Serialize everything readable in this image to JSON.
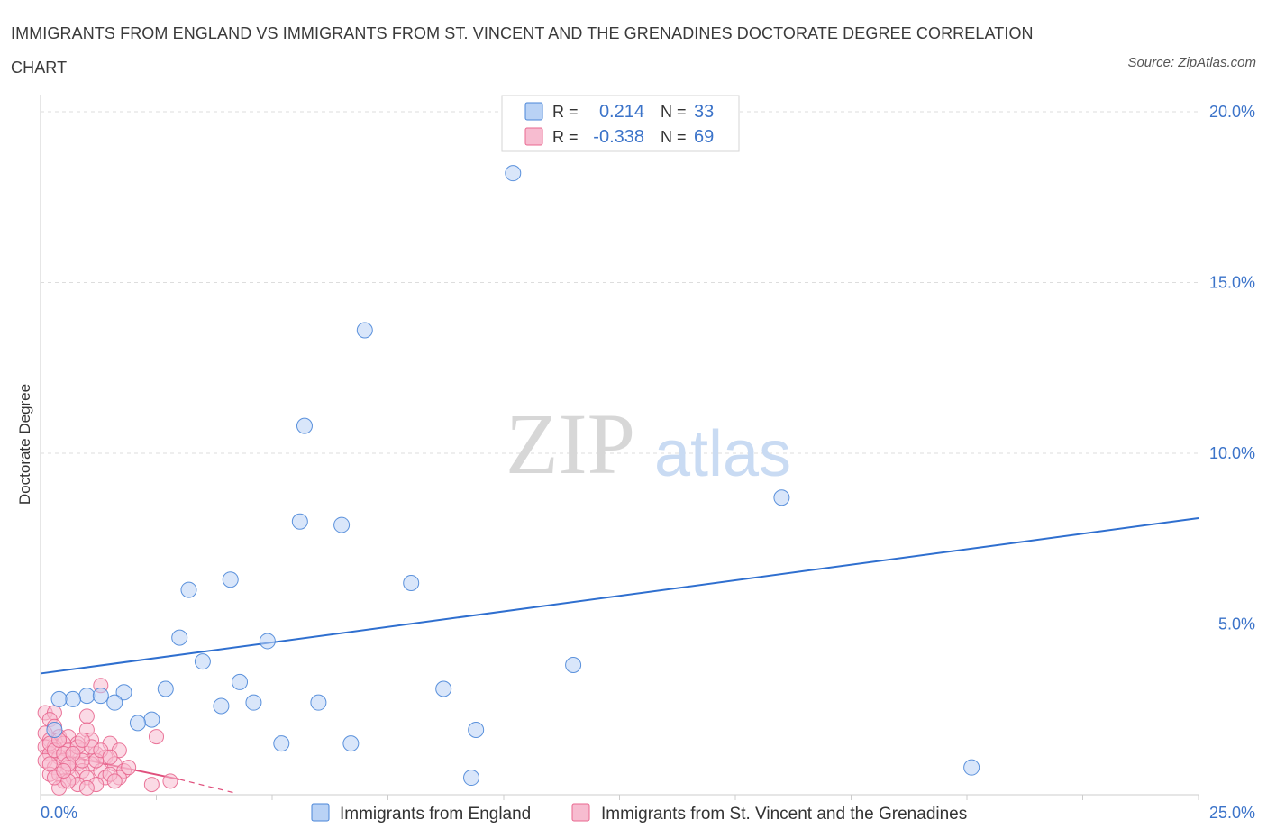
{
  "title": "IMMIGRANTS FROM ENGLAND VS IMMIGRANTS FROM ST. VINCENT AND THE GRENADINES DOCTORATE DEGREE CORRELATION CHART",
  "source": "Source: ZipAtlas.com",
  "watermark": {
    "zip": "ZIP",
    "atlas": "atlas"
  },
  "colors": {
    "blue": "#4a86d8",
    "blue_fill": "#b9d2f5",
    "blue_line": "#2f6fcf",
    "pink": "#e8678f",
    "pink_fill": "#f7bcd0",
    "pink_line": "#e0507d",
    "axis_text": "#3b73c9",
    "grid": "#dddddd"
  },
  "legend_box": {
    "rows": [
      {
        "r_label": "R =",
        "r_value": "0.214",
        "n_label": "N =",
        "n_value": "33",
        "color": "blue"
      },
      {
        "r_label": "R =",
        "r_value": "-0.338",
        "n_label": "N =",
        "n_value": "69",
        "color": "pink"
      }
    ]
  },
  "chart_data": {
    "type": "scatter",
    "ylabel": "Doctorate Degree",
    "xlabel": "",
    "xlim": [
      0,
      25
    ],
    "ylim": [
      0,
      20.5
    ],
    "x_tick_labels": [
      {
        "value": 0,
        "label": "0.0%"
      },
      {
        "value": 25,
        "label": "25.0%"
      }
    ],
    "y_tick_labels": [
      {
        "value": 5,
        "label": "5.0%"
      },
      {
        "value": 10,
        "label": "10.0%"
      },
      {
        "value": 15,
        "label": "15.0%"
      },
      {
        "value": 20,
        "label": "20.0%"
      }
    ],
    "grid": true,
    "legend_position": "bottom",
    "series": [
      {
        "name": "Immigrants from England",
        "color": "blue",
        "points": [
          [
            10.2,
            18.2
          ],
          [
            7.0,
            13.6
          ],
          [
            5.7,
            10.8
          ],
          [
            16.0,
            8.7
          ],
          [
            5.6,
            8.0
          ],
          [
            6.5,
            7.9
          ],
          [
            8.0,
            6.2
          ],
          [
            4.1,
            6.3
          ],
          [
            3.2,
            6.0
          ],
          [
            3.0,
            4.6
          ],
          [
            4.9,
            4.5
          ],
          [
            3.5,
            3.9
          ],
          [
            11.5,
            3.8
          ],
          [
            4.3,
            3.3
          ],
          [
            8.7,
            3.1
          ],
          [
            2.7,
            3.1
          ],
          [
            1.8,
            3.0
          ],
          [
            1.0,
            2.9
          ],
          [
            1.3,
            2.9
          ],
          [
            0.7,
            2.8
          ],
          [
            0.4,
            2.8
          ],
          [
            1.6,
            2.7
          ],
          [
            4.6,
            2.7
          ],
          [
            6.0,
            2.7
          ],
          [
            3.9,
            2.6
          ],
          [
            2.4,
            2.2
          ],
          [
            2.1,
            2.1
          ],
          [
            9.4,
            1.9
          ],
          [
            0.3,
            1.9
          ],
          [
            5.2,
            1.5
          ],
          [
            6.7,
            1.5
          ],
          [
            9.3,
            0.5
          ],
          [
            20.1,
            0.8
          ]
        ]
      },
      {
        "name": "Immigrants from St. Vincent and the Grenadines",
        "color": "pink",
        "points": [
          [
            1.3,
            3.2
          ],
          [
            0.1,
            2.4
          ],
          [
            0.3,
            2.4
          ],
          [
            0.2,
            2.2
          ],
          [
            1.0,
            2.3
          ],
          [
            0.3,
            2.0
          ],
          [
            1.0,
            1.9
          ],
          [
            0.1,
            1.8
          ],
          [
            0.4,
            1.7
          ],
          [
            0.6,
            1.7
          ],
          [
            1.1,
            1.6
          ],
          [
            2.5,
            1.7
          ],
          [
            0.2,
            1.6
          ],
          [
            0.5,
            1.5
          ],
          [
            0.8,
            1.5
          ],
          [
            1.5,
            1.5
          ],
          [
            0.1,
            1.4
          ],
          [
            0.3,
            1.4
          ],
          [
            0.6,
            1.3
          ],
          [
            0.9,
            1.3
          ],
          [
            1.2,
            1.2
          ],
          [
            1.7,
            1.3
          ],
          [
            0.2,
            1.2
          ],
          [
            0.4,
            1.1
          ],
          [
            0.7,
            1.1
          ],
          [
            1.4,
            1.1
          ],
          [
            0.1,
            1.0
          ],
          [
            0.5,
            1.0
          ],
          [
            0.8,
            0.9
          ],
          [
            1.1,
            0.9
          ],
          [
            1.6,
            0.9
          ],
          [
            0.3,
            0.8
          ],
          [
            0.6,
            0.8
          ],
          [
            0.9,
            0.7
          ],
          [
            1.3,
            0.7
          ],
          [
            1.8,
            0.7
          ],
          [
            0.2,
            0.6
          ],
          [
            0.4,
            0.6
          ],
          [
            0.7,
            0.5
          ],
          [
            1.0,
            0.5
          ],
          [
            1.4,
            0.5
          ],
          [
            1.7,
            0.5
          ],
          [
            0.5,
            0.4
          ],
          [
            0.8,
            0.3
          ],
          [
            1.2,
            0.3
          ],
          [
            2.4,
            0.3
          ],
          [
            2.8,
            0.4
          ],
          [
            0.4,
            0.2
          ],
          [
            1.0,
            0.2
          ],
          [
            1.5,
            0.6
          ],
          [
            1.9,
            0.8
          ],
          [
            0.2,
            1.5
          ],
          [
            0.3,
            1.3
          ],
          [
            0.5,
            1.2
          ],
          [
            0.6,
            0.9
          ],
          [
            0.4,
            1.6
          ],
          [
            0.8,
            1.4
          ],
          [
            1.1,
            1.4
          ],
          [
            0.9,
            1.0
          ],
          [
            1.2,
            1.0
          ],
          [
            0.3,
            0.5
          ],
          [
            0.6,
            0.4
          ],
          [
            1.6,
            0.4
          ],
          [
            0.7,
            1.2
          ],
          [
            0.2,
            0.9
          ],
          [
            0.5,
            0.7
          ],
          [
            1.3,
            1.3
          ],
          [
            0.9,
            1.6
          ],
          [
            1.5,
            1.1
          ]
        ]
      }
    ],
    "trend_lines": [
      {
        "series": "Immigrants from England",
        "color": "blue",
        "style": "solid",
        "from": [
          0,
          3.55
        ],
        "to": [
          25,
          8.1
        ]
      },
      {
        "series": "Immigrants from St. Vincent and the Grenadines",
        "color": "pink",
        "style": "solid",
        "from": [
          0,
          1.3
        ],
        "to": [
          3.0,
          0.45
        ]
      },
      {
        "series": "Immigrants from St. Vincent and the Grenadines",
        "color": "pink",
        "style": "dashed",
        "from": [
          3.0,
          0.45
        ],
        "to": [
          4.2,
          0.05
        ]
      }
    ]
  },
  "bottom_legend": [
    {
      "label": "Immigrants from England",
      "color": "blue"
    },
    {
      "label": "Immigrants from St. Vincent and the Grenadines",
      "color": "pink"
    }
  ]
}
